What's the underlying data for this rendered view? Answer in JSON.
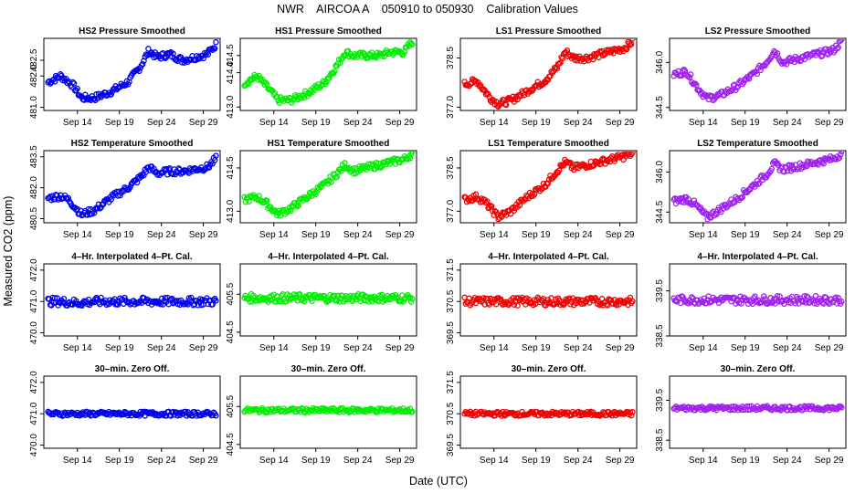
{
  "figure": {
    "title": "NWR    AIRCOA A    050910 to 050930    Calibration Values",
    "xlabel": "Date (UTC)",
    "ylabel": "Measured CO2 (ppm)"
  },
  "x_ticks": [
    "Sep 14",
    "Sep 19",
    "Sep 24",
    "Sep 29"
  ],
  "colors": {
    "HS2": "#0000ee",
    "HS1": "#00ee00",
    "LS1": "#ee0000",
    "LS2": "#a020f0"
  },
  "chart_data": [
    {
      "type": "scatter",
      "id": "r0c0",
      "title": "HS2 Pressure Smoothed",
      "series": "HS2",
      "x_range": [
        10,
        31
      ],
      "ylim": [
        480.9,
        483.2
      ],
      "y_ticks": [
        "481.0",
        "482.0",
        "482.5"
      ],
      "y_tick_values": [
        481.0,
        482.0,
        482.5
      ],
      "x": [
        10.5,
        12,
        13.5,
        14.5,
        16,
        18,
        20,
        21.5,
        22.5,
        23.5,
        25,
        26.5,
        28,
        29.5,
        30.5
      ],
      "values": [
        481.8,
        482.0,
        481.7,
        481.3,
        481.3,
        481.5,
        481.8,
        482.3,
        482.8,
        482.6,
        482.7,
        482.5,
        482.6,
        482.7,
        483.0
      ]
    },
    {
      "type": "scatter",
      "id": "r0c1",
      "title": "HS1 Pressure Smoothed",
      "series": "HS1",
      "x_range": [
        10,
        31
      ],
      "ylim": [
        412.9,
        415.0
      ],
      "y_ticks": [
        "413.0",
        "414.0",
        "414.5"
      ],
      "y_tick_values": [
        413.0,
        414.0,
        414.5
      ],
      "x": [
        10.5,
        12,
        13.5,
        14.5,
        16,
        18,
        20,
        21.5,
        22.5,
        23.5,
        25,
        26.5,
        28,
        29.5,
        30.5
      ],
      "values": [
        413.7,
        413.9,
        413.5,
        413.2,
        413.2,
        413.4,
        413.7,
        414.2,
        414.6,
        414.5,
        414.5,
        414.5,
        414.6,
        414.6,
        414.9
      ]
    },
    {
      "type": "scatter",
      "id": "r0c2",
      "title": "LS1 Pressure Smoothed",
      "series": "LS1",
      "x_range": [
        10,
        31
      ],
      "ylim": [
        376.9,
        379.1
      ],
      "y_ticks": [
        "377.0",
        "378.5"
      ],
      "y_tick_values": [
        377.0,
        378.5
      ],
      "x": [
        10.5,
        12,
        13.5,
        14.5,
        16,
        18,
        20,
        21.5,
        22.5,
        23.5,
        25,
        26.5,
        28,
        29.5,
        30.5
      ],
      "values": [
        377.7,
        377.8,
        377.3,
        377.1,
        377.2,
        377.5,
        377.8,
        378.2,
        378.7,
        378.5,
        378.5,
        378.6,
        378.7,
        378.8,
        379.0
      ]
    },
    {
      "type": "scatter",
      "id": "r0c3",
      "title": "LS2 Pressure Smoothed",
      "series": "LS2",
      "x_range": [
        10,
        31
      ],
      "ylim": [
        344.4,
        346.8
      ],
      "y_ticks": [
        "344.5",
        "346.0"
      ],
      "y_tick_values": [
        344.5,
        346.0
      ],
      "x": [
        10.5,
        12,
        13.5,
        14.5,
        16,
        18,
        20,
        21.5,
        22.5,
        23.5,
        25,
        26.5,
        28,
        29.5,
        30.5
      ],
      "values": [
        345.6,
        345.7,
        345.1,
        344.8,
        344.9,
        345.2,
        345.6,
        346.0,
        346.4,
        346.0,
        346.1,
        346.2,
        346.3,
        346.4,
        346.7
      ]
    },
    {
      "type": "scatter",
      "id": "r1c0",
      "title": "HS2 Temperature Smoothed",
      "series": "HS2",
      "x_range": [
        10,
        31
      ],
      "ylim": [
        480.3,
        483.8
      ],
      "y_ticks": [
        "480.5",
        "482.0",
        "483.5"
      ],
      "y_tick_values": [
        480.5,
        482.0,
        483.5
      ],
      "x": [
        10.5,
        12,
        13,
        14.5,
        16,
        18,
        20,
        21.5,
        22.5,
        23.5,
        25,
        26.5,
        28,
        29.5,
        30.5
      ],
      "values": [
        481.5,
        481.6,
        481.4,
        480.7,
        480.9,
        481.5,
        482.0,
        482.5,
        483.0,
        482.7,
        482.8,
        482.8,
        482.9,
        483.0,
        483.4
      ]
    },
    {
      "type": "scatter",
      "id": "r1c1",
      "title": "HS1 Temperature Smoothed",
      "series": "HS1",
      "x_range": [
        10,
        31
      ],
      "ylim": [
        412.6,
        415.1
      ],
      "y_ticks": [
        "413.0",
        "414.5"
      ],
      "y_tick_values": [
        413.0,
        414.5
      ],
      "x": [
        10.5,
        12,
        13,
        14.5,
        16,
        18,
        20,
        21.5,
        22.5,
        23.5,
        25,
        26.5,
        28,
        29.5,
        30.5
      ],
      "values": [
        413.4,
        413.5,
        413.3,
        412.9,
        413.1,
        413.5,
        413.9,
        414.3,
        414.6,
        414.4,
        414.5,
        414.6,
        414.7,
        414.8,
        415.0
      ]
    },
    {
      "type": "scatter",
      "id": "r1c2",
      "title": "LS1 Temperature Smoothed",
      "series": "LS1",
      "x_range": [
        10,
        31
      ],
      "ylim": [
        376.6,
        379.1
      ],
      "y_ticks": [
        "377.0",
        "378.5"
      ],
      "y_tick_values": [
        377.0,
        378.5
      ],
      "x": [
        10.5,
        12,
        13,
        14.5,
        16,
        18,
        20,
        21.5,
        22.5,
        23.5,
        25,
        26.5,
        28,
        29.5,
        30.5
      ],
      "values": [
        377.4,
        377.5,
        377.3,
        376.8,
        377.0,
        377.5,
        377.9,
        378.4,
        378.7,
        378.5,
        378.6,
        378.7,
        378.8,
        378.9,
        379.0
      ]
    },
    {
      "type": "scatter",
      "id": "r1c3",
      "title": "LS2 Temperature Smoothed",
      "series": "LS2",
      "x_range": [
        10,
        31
      ],
      "ylim": [
        344.1,
        346.8
      ],
      "y_ticks": [
        "344.5",
        "346.0"
      ],
      "y_tick_values": [
        344.5,
        346.0
      ],
      "x": [
        10.5,
        12,
        13,
        14.5,
        16,
        18,
        20,
        21.5,
        22.5,
        23.5,
        25,
        26.5,
        28,
        29.5,
        30.5
      ],
      "values": [
        344.9,
        345.0,
        344.8,
        344.3,
        344.6,
        345.0,
        345.5,
        345.9,
        346.3,
        346.1,
        346.2,
        346.3,
        346.4,
        346.5,
        346.7
      ]
    },
    {
      "type": "scatter",
      "id": "r2c0",
      "title": "4–Hr. Interpolated 4–Pt. Cal.",
      "series": "HS2",
      "x_range": [
        10,
        31
      ],
      "ylim": [
        469.9,
        472.2
      ],
      "y_ticks": [
        "470.0",
        "471.0",
        "472.0"
      ],
      "y_tick_values": [
        470.0,
        471.0,
        472.0
      ],
      "x": [
        10.5,
        12,
        14,
        16,
        18,
        20,
        22,
        24,
        26,
        28,
        30.5
      ],
      "values": [
        471.0,
        471.0,
        470.95,
        471.0,
        471.0,
        471.0,
        471.0,
        471.0,
        471.0,
        471.0,
        471.0
      ]
    },
    {
      "type": "scatter",
      "id": "r2c1",
      "title": "4–Hr. Interpolated 4–Pt. Cal.",
      "series": "HS1",
      "x_range": [
        10,
        31
      ],
      "ylim": [
        404.4,
        406.3
      ],
      "y_ticks": [
        "404.5",
        "405.5"
      ],
      "y_tick_values": [
        404.5,
        405.5
      ],
      "x": [
        10.5,
        12,
        14,
        16,
        18,
        20,
        22,
        24,
        26,
        28,
        30.5
      ],
      "values": [
        405.4,
        405.4,
        405.4,
        405.4,
        405.4,
        405.4,
        405.4,
        405.4,
        405.4,
        405.4,
        405.4
      ]
    },
    {
      "type": "scatter",
      "id": "r2c2",
      "title": "4–Hr. Interpolated 4–Pt. Cal.",
      "series": "LS1",
      "x_range": [
        10,
        31
      ],
      "ylim": [
        369.4,
        371.7
      ],
      "y_ticks": [
        "369.5",
        "370.5",
        "371.5"
      ],
      "y_tick_values": [
        369.5,
        370.5,
        371.5
      ],
      "x": [
        10.5,
        12,
        14,
        16,
        18,
        20,
        22,
        24,
        26,
        28,
        30.5
      ],
      "values": [
        370.5,
        370.5,
        370.5,
        370.5,
        370.5,
        370.5,
        370.5,
        370.5,
        370.5,
        370.5,
        370.5
      ]
    },
    {
      "type": "scatter",
      "id": "r2c3",
      "title": "4–Hr. Interpolated 4–Pt. Cal.",
      "series": "LS2",
      "x_range": [
        10,
        31
      ],
      "ylim": [
        338.5,
        340.1
      ],
      "y_ticks": [
        "338.5",
        "339.5"
      ],
      "y_tick_values": [
        338.5,
        339.5
      ],
      "x": [
        10.5,
        12,
        14,
        16,
        18,
        20,
        22,
        24,
        26,
        28,
        30.5
      ],
      "values": [
        339.3,
        339.3,
        339.3,
        339.3,
        339.3,
        339.3,
        339.3,
        339.3,
        339.3,
        339.3,
        339.3
      ]
    },
    {
      "type": "scatter",
      "id": "r3c0",
      "title": "30–min. Zero Off.",
      "series": "HS2",
      "x_range": [
        10,
        31
      ],
      "ylim": [
        469.9,
        472.2
      ],
      "y_ticks": [
        "470.0",
        "471.0",
        "472.0"
      ],
      "y_tick_values": [
        470.0,
        471.0,
        472.0
      ],
      "x": [
        10.5,
        12,
        14,
        16,
        18,
        20,
        22,
        24,
        26,
        28,
        30.5
      ],
      "values": [
        471.0,
        471.0,
        471.0,
        471.0,
        471.0,
        471.0,
        471.0,
        471.0,
        471.0,
        471.0,
        471.0
      ]
    },
    {
      "type": "scatter",
      "id": "r3c1",
      "title": "30–min. Zero Off.",
      "series": "HS1",
      "x_range": [
        10,
        31
      ],
      "ylim": [
        404.4,
        406.3
      ],
      "y_ticks": [
        "404.5",
        "405.5"
      ],
      "y_tick_values": [
        404.5,
        405.5
      ],
      "x": [
        10.5,
        12,
        14,
        16,
        18,
        20,
        22,
        24,
        26,
        28,
        30.5
      ],
      "values": [
        405.4,
        405.4,
        405.4,
        405.4,
        405.4,
        405.4,
        405.4,
        405.4,
        405.4,
        405.4,
        405.4
      ]
    },
    {
      "type": "scatter",
      "id": "r3c2",
      "title": "30–min. Zero Off.",
      "series": "LS1",
      "x_range": [
        10,
        31
      ],
      "ylim": [
        369.4,
        371.7
      ],
      "y_ticks": [
        "369.5",
        "370.5",
        "371.5"
      ],
      "y_tick_values": [
        369.5,
        370.5,
        371.5
      ],
      "x": [
        10.5,
        12,
        14,
        16,
        18,
        20,
        22,
        24,
        26,
        28,
        30.5
      ],
      "values": [
        370.5,
        370.5,
        370.5,
        370.5,
        370.5,
        370.5,
        370.5,
        370.5,
        370.5,
        370.5,
        370.5
      ]
    },
    {
      "type": "scatter",
      "id": "r3c3",
      "title": "30–min. Zero Off.",
      "series": "LS2",
      "x_range": [
        10,
        31
      ],
      "ylim": [
        338.3,
        340.1
      ],
      "y_ticks": [
        "338.5",
        "339.5"
      ],
      "y_tick_values": [
        338.5,
        339.5
      ],
      "x": [
        10.5,
        12,
        14,
        16,
        18,
        20,
        22,
        24,
        26,
        28,
        30.5
      ],
      "values": [
        339.3,
        339.3,
        339.3,
        339.3,
        339.3,
        339.3,
        339.3,
        339.3,
        339.3,
        339.3,
        339.3
      ]
    }
  ]
}
